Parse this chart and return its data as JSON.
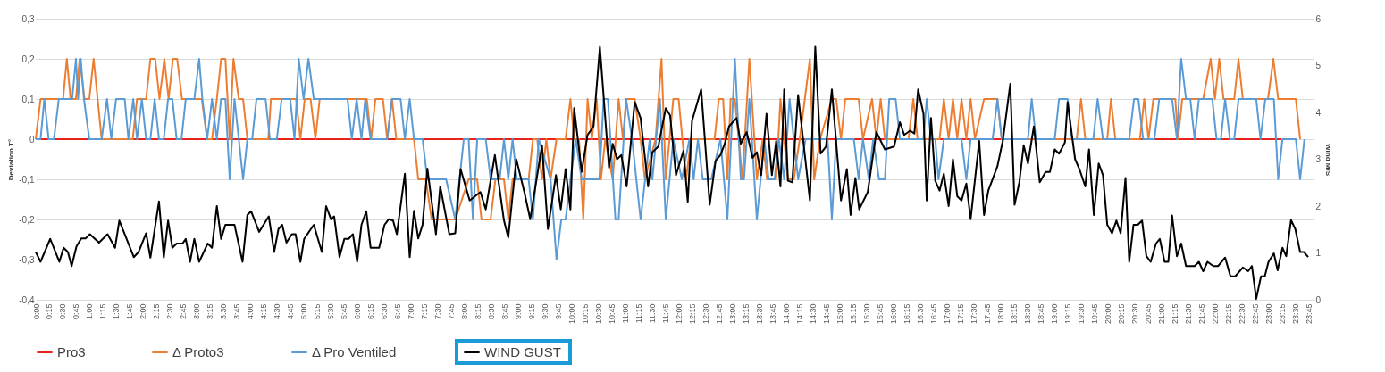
{
  "chart_data": {
    "type": "line",
    "ylabel": "Deviation T°",
    "y2label": "Wind M/S",
    "xlim": [
      0,
      23.85
    ],
    "xticks": [
      {
        "value": 0,
        "label": "0:00"
      },
      {
        "value": 0.25,
        "label": "0:15"
      },
      {
        "value": 0.5,
        "label": "0:30"
      },
      {
        "value": 0.75,
        "label": "0:45"
      },
      {
        "value": 1,
        "label": "1:00"
      },
      {
        "value": 1.25,
        "label": "1:15"
      },
      {
        "value": 1.5,
        "label": "1:30"
      },
      {
        "value": 1.75,
        "label": "1:45"
      },
      {
        "value": 2,
        "label": "2:00"
      },
      {
        "value": 2.25,
        "label": "2:15"
      },
      {
        "value": 2.5,
        "label": "2:30"
      },
      {
        "value": 2.75,
        "label": "2:45"
      },
      {
        "value": 3,
        "label": "3:00"
      },
      {
        "value": 3.25,
        "label": "3:15"
      },
      {
        "value": 3.5,
        "label": "3:30"
      },
      {
        "value": 3.75,
        "label": "3:45"
      },
      {
        "value": 4,
        "label": "4:00"
      },
      {
        "value": 4.25,
        "label": "4:15"
      },
      {
        "value": 4.5,
        "label": "4:30"
      },
      {
        "value": 4.75,
        "label": "4:45"
      },
      {
        "value": 5,
        "label": "5:00"
      },
      {
        "value": 5.25,
        "label": "5:15"
      },
      {
        "value": 5.5,
        "label": "5:30"
      },
      {
        "value": 5.75,
        "label": "5:45"
      },
      {
        "value": 6,
        "label": "6:00"
      },
      {
        "value": 6.25,
        "label": "6:15"
      },
      {
        "value": 6.5,
        "label": "6:30"
      },
      {
        "value": 6.75,
        "label": "6:45"
      },
      {
        "value": 7,
        "label": "7:00"
      },
      {
        "value": 7.25,
        "label": "7:15"
      },
      {
        "value": 7.5,
        "label": "7:30"
      },
      {
        "value": 7.75,
        "label": "7:45"
      },
      {
        "value": 8,
        "label": "8:00"
      },
      {
        "value": 8.25,
        "label": "8:15"
      },
      {
        "value": 8.5,
        "label": "8:30"
      },
      {
        "value": 8.75,
        "label": "8:45"
      },
      {
        "value": 9,
        "label": "9:00"
      },
      {
        "value": 9.25,
        "label": "9:15"
      },
      {
        "value": 9.5,
        "label": "9:30"
      },
      {
        "value": 9.75,
        "label": "9:45"
      },
      {
        "value": 10,
        "label": "10:00"
      },
      {
        "value": 10.25,
        "label": "10:15"
      },
      {
        "value": 10.5,
        "label": "10:30"
      },
      {
        "value": 10.75,
        "label": "10:45"
      },
      {
        "value": 11,
        "label": "11:00"
      },
      {
        "value": 11.25,
        "label": "11:15"
      },
      {
        "value": 11.5,
        "label": "11:30"
      },
      {
        "value": 11.75,
        "label": "11:45"
      },
      {
        "value": 12,
        "label": "12:00"
      },
      {
        "value": 12.25,
        "label": "12:15"
      },
      {
        "value": 12.5,
        "label": "12:30"
      },
      {
        "value": 12.75,
        "label": "12:45"
      },
      {
        "value": 13,
        "label": "13:00"
      },
      {
        "value": 13.25,
        "label": "13:15"
      },
      {
        "value": 13.5,
        "label": "13:30"
      },
      {
        "value": 13.75,
        "label": "13:45"
      },
      {
        "value": 14,
        "label": "14:00"
      },
      {
        "value": 14.25,
        "label": "14:15"
      },
      {
        "value": 14.5,
        "label": "14:30"
      },
      {
        "value": 14.75,
        "label": "14:45"
      },
      {
        "value": 15,
        "label": "15:00"
      },
      {
        "value": 15.25,
        "label": "15:15"
      },
      {
        "value": 15.5,
        "label": "15:30"
      },
      {
        "value": 15.75,
        "label": "15:45"
      },
      {
        "value": 16,
        "label": "16:00"
      },
      {
        "value": 16.25,
        "label": "16:15"
      },
      {
        "value": 16.5,
        "label": "16:30"
      },
      {
        "value": 16.75,
        "label": "16:45"
      },
      {
        "value": 17,
        "label": "17:00"
      },
      {
        "value": 17.25,
        "label": "17:15"
      },
      {
        "value": 17.5,
        "label": "17:30"
      },
      {
        "value": 17.75,
        "label": "17:45"
      },
      {
        "value": 18,
        "label": "18:00"
      },
      {
        "value": 18.25,
        "label": "18:15"
      },
      {
        "value": 18.5,
        "label": "18:30"
      },
      {
        "value": 18.75,
        "label": "18:45"
      },
      {
        "value": 19,
        "label": "19:00"
      },
      {
        "value": 19.25,
        "label": "19:15"
      },
      {
        "value": 19.5,
        "label": "19:30"
      },
      {
        "value": 19.75,
        "label": "19:45"
      },
      {
        "value": 20,
        "label": "20:00"
      },
      {
        "value": 20.25,
        "label": "20:15"
      },
      {
        "value": 20.5,
        "label": "20:30"
      },
      {
        "value": 20.75,
        "label": "20:45"
      },
      {
        "value": 21,
        "label": "21:00"
      },
      {
        "value": 21.25,
        "label": "21:15"
      },
      {
        "value": 21.5,
        "label": "21:30"
      },
      {
        "value": 21.75,
        "label": "21:45"
      },
      {
        "value": 22,
        "label": "22:00"
      },
      {
        "value": 22.25,
        "label": "22:15"
      },
      {
        "value": 22.5,
        "label": "22:30"
      },
      {
        "value": 22.75,
        "label": "22:45"
      },
      {
        "value": 23,
        "label": "23:00"
      },
      {
        "value": 23.25,
        "label": "23:15"
      },
      {
        "value": 23.5,
        "label": "23:30"
      },
      {
        "value": 23.75,
        "label": "23:45"
      }
    ],
    "ylim": [
      -0.4,
      0.3
    ],
    "yticks": [
      {
        "value": -0.4,
        "label": "-0,4"
      },
      {
        "value": -0.3,
        "label": "-0,3"
      },
      {
        "value": -0.2,
        "label": "-0,2"
      },
      {
        "value": -0.1,
        "label": "-0,1"
      },
      0,
      {
        "value": 0.1,
        "label": "0,1"
      },
      {
        "value": 0.2,
        "label": "0,2"
      },
      {
        "value": 0.3,
        "label": "0,3"
      }
    ],
    "y2lim": [
      0,
      6
    ],
    "y2ticks": [
      0,
      1,
      2,
      3,
      4,
      5,
      6
    ],
    "grid": "y",
    "legend": "bottom",
    "series": [
      {
        "name": "Pro3",
        "color": "#e8231c",
        "x": [
          0,
          23.25
        ],
        "values": [
          0,
          0
        ]
      },
      {
        "name": "Δ Proto3",
        "color": "#ed7d31",
        "x": [
          0,
          0.09,
          0.51,
          0.58,
          0.65,
          0.75,
          0.82,
          0.91,
          1.0,
          1.08,
          1.23,
          1.81,
          1.89,
          2.06,
          2.14,
          2.23,
          2.31,
          2.4,
          2.48,
          2.56,
          2.64,
          2.73,
          3.1,
          3.2,
          3.29,
          3.38,
          3.46,
          3.54,
          3.62,
          3.69,
          3.79,
          3.87,
          3.95,
          4.34,
          4.39,
          4.86,
          4.94,
          5.02,
          5.13,
          5.22,
          5.3,
          6.18,
          6.26,
          6.34,
          6.48,
          6.56,
          6.65,
          6.73,
          7.06,
          7.14,
          7.28,
          7.39,
          7.83,
          8.08,
          8.24,
          8.32,
          8.49,
          8.58,
          8.74,
          8.82,
          8.9,
          9.2,
          9.28,
          9.36,
          9.45,
          9.53,
          9.61,
          9.72,
          9.89,
          9.98,
          10.05,
          10.14,
          10.22,
          10.3,
          10.38,
          10.47,
          10.55,
          10.63,
          10.77,
          10.88,
          10.96,
          11.02,
          11.18,
          11.29,
          11.37,
          11.57,
          11.68,
          11.76,
          11.9,
          12.0,
          12.14,
          12.23,
          12.67,
          12.75,
          12.83,
          12.91,
          12.97,
          13.05,
          13.19,
          13.32,
          13.46,
          13.57,
          13.65,
          13.82,
          13.9,
          14.04,
          14.15,
          14.26,
          14.45,
          14.53,
          14.64,
          14.86,
          14.94,
          15.03,
          15.11,
          15.36,
          15.44,
          15.61,
          15.69,
          15.77,
          15.85,
          16.29,
          16.38,
          16.46,
          16.87,
          16.95,
          17.04,
          17.12,
          17.2,
          17.28,
          17.37,
          17.45,
          17.53,
          17.7,
          17.95,
          18.03,
          19.43,
          19.51,
          19.59,
          20.0,
          20.07,
          20.15,
          20.61,
          20.69,
          20.77,
          20.86,
          21.27,
          21.32,
          21.4,
          21.79,
          21.93,
          22.01,
          22.09,
          22.17,
          22.37,
          22.45,
          22.53,
          23.0,
          23.1,
          23.19,
          23.52,
          23.6
        ],
        "values": [
          0,
          0.1,
          0.1,
          0.2,
          0.1,
          0.1,
          0.2,
          0.1,
          0.1,
          0.2,
          0,
          0,
          0.1,
          0.1,
          0.2,
          0.2,
          0.1,
          0.2,
          0.1,
          0.2,
          0.2,
          0.1,
          0.1,
          0,
          0,
          0.1,
          0.2,
          0.2,
          0,
          0.2,
          0.1,
          0.1,
          0,
          0,
          0.1,
          0.1,
          0,
          0.1,
          0.1,
          0,
          0.1,
          0.1,
          0,
          0.1,
          0.1,
          0,
          0.1,
          0,
          0,
          -0.1,
          -0.1,
          -0.2,
          -0.2,
          -0.1,
          -0.1,
          -0.2,
          -0.2,
          -0.1,
          -0.1,
          -0.2,
          -0.1,
          -0.1,
          0,
          0,
          -0.1,
          0,
          -0.1,
          0,
          0,
          0.1,
          0,
          0,
          -0.2,
          0.1,
          0,
          0.1,
          -0.1,
          0,
          -0.1,
          0.1,
          0,
          0.1,
          0.1,
          0,
          -0.1,
          0,
          0.2,
          -0.1,
          0.1,
          0.1,
          -0.1,
          0,
          0,
          0.1,
          0.1,
          -0.1,
          0.1,
          0.1,
          -0.1,
          0.2,
          -0.1,
          0,
          -0.1,
          -0.1,
          0.1,
          -0.1,
          -0.1,
          0,
          0.2,
          -0.1,
          0,
          0.1,
          0.1,
          0,
          0.1,
          0.1,
          0,
          0.1,
          0,
          0.1,
          0,
          0,
          0.1,
          0,
          0,
          0.1,
          0,
          0.1,
          0,
          0.1,
          0,
          0.1,
          0,
          0.1,
          0.1,
          0,
          0,
          0.1,
          0,
          0,
          0.1,
          0,
          0,
          0.1,
          0,
          0.1,
          0.1,
          0,
          0.1,
          0.1,
          0.2,
          0.1,
          0.2,
          0.1,
          0.1,
          0.2,
          0.1,
          0.1,
          0.2,
          0.1,
          0.1,
          0
        ]
      },
      {
        "name": "Δ Pro Ventiled",
        "color": "#5b9bd5",
        "x": [
          0,
          0.09,
          0.16,
          0.24,
          0.34,
          0.43,
          0.68,
          0.75,
          0.79,
          0.84,
          0.9,
          1.0,
          1.23,
          1.33,
          1.41,
          1.5,
          1.66,
          1.73,
          1.82,
          1.89,
          1.98,
          2.06,
          2.14,
          2.22,
          2.3,
          2.39,
          2.47,
          2.55,
          2.63,
          2.72,
          2.8,
          2.96,
          3.05,
          3.11,
          3.2,
          3.29,
          3.38,
          3.46,
          3.54,
          3.62,
          3.71,
          3.79,
          3.87,
          3.95,
          4.04,
          4.12,
          4.29,
          4.37,
          4.5,
          4.59,
          4.75,
          4.83,
          4.91,
          5.0,
          5.09,
          5.19,
          5.82,
          5.9,
          5.99,
          6.08,
          6.15,
          6.25,
          6.56,
          6.65,
          6.81,
          6.89,
          6.98,
          7.06,
          7.22,
          7.31,
          7.66,
          7.83,
          7.99,
          8.08,
          8.16,
          8.24,
          8.4,
          8.49,
          8.66,
          8.74,
          8.82,
          8.9,
          8.98,
          9.2,
          9.28,
          9.39,
          9.61,
          9.72,
          9.81,
          9.89,
          9.98,
          10.08,
          10.19,
          10.52,
          10.6,
          10.68,
          10.82,
          10.88,
          11.02,
          11.13,
          11.29,
          11.46,
          11.51,
          11.65,
          11.76,
          11.9,
          12.06,
          12.2,
          12.28,
          12.36,
          12.45,
          12.61,
          12.78,
          12.91,
          13.05,
          13.16,
          13.22,
          13.32,
          13.46,
          13.6,
          13.68,
          13.79,
          13.87,
          13.97,
          14.07,
          14.23,
          14.37,
          14.78,
          14.86,
          14.94,
          15.27,
          15.36,
          15.44,
          15.55,
          15.63,
          15.74,
          15.85,
          15.93,
          16.05,
          16.13,
          16.57,
          16.63,
          16.71,
          16.79,
          16.85,
          16.95,
          17.28,
          17.37,
          17.45,
          17.86,
          17.95,
          18.03,
          18.52,
          18.59,
          18.67,
          19.02,
          19.1,
          19.26,
          19.34,
          19.74,
          19.82,
          19.92,
          20.41,
          20.5,
          20.58,
          20.67,
          20.88,
          20.97,
          21.21,
          21.3,
          21.38,
          21.47,
          21.55,
          21.63,
          21.71,
          21.96,
          22.04,
          22.12,
          22.2,
          22.29,
          22.37,
          22.45,
          22.78,
          22.86,
          22.95,
          23.11,
          23.19,
          23.27,
          23.52,
          23.6,
          23.68
        ],
        "values": [
          0,
          0,
          0.1,
          0,
          0,
          0.1,
          0.1,
          0.2,
          0.1,
          0.2,
          0.1,
          0,
          0,
          0.1,
          0,
          0.1,
          0.1,
          0,
          0.1,
          0,
          0.1,
          0,
          0,
          0.1,
          0,
          0,
          0.1,
          0.1,
          0,
          0,
          0.1,
          0.1,
          0.2,
          0.1,
          0,
          0.1,
          0,
          0.1,
          0.1,
          -0.1,
          0.1,
          0,
          -0.1,
          0,
          0,
          0.1,
          0.1,
          0,
          0,
          0.1,
          0.1,
          0,
          0.2,
          0.1,
          0.2,
          0.1,
          0.1,
          0,
          0.1,
          0,
          0.1,
          0,
          0,
          0.1,
          0.1,
          0,
          0.1,
          0,
          0,
          -0.1,
          -0.1,
          -0.2,
          0,
          0,
          -0.2,
          0,
          0,
          -0.1,
          -0.1,
          0,
          -0.1,
          0,
          -0.1,
          -0.1,
          -0.2,
          0,
          -0.1,
          -0.3,
          -0.2,
          -0.2,
          -0.1,
          0,
          -0.1,
          -0.1,
          0.1,
          0.1,
          -0.2,
          -0.2,
          0.1,
          0,
          -0.2,
          0,
          -0.1,
          0.1,
          -0.2,
          0,
          -0.1,
          0,
          -0.1,
          0,
          -0.1,
          -0.1,
          0,
          -0.2,
          0.2,
          -0.1,
          -0.1,
          0.1,
          -0.2,
          0,
          -0.1,
          -0.1,
          0,
          -0.1,
          0.1,
          -0.1,
          0,
          0,
          -0.2,
          0,
          0,
          -0.1,
          0,
          -0.1,
          0,
          -0.1,
          -0.1,
          0.1,
          0.1,
          0,
          0,
          0.1,
          0,
          0,
          -0.1,
          0,
          0,
          -0.1,
          0,
          0,
          0.1,
          0,
          0,
          0.1,
          0,
          0,
          0.1,
          0.1,
          0,
          0,
          0.1,
          0,
          0,
          0.1,
          0.1,
          0,
          0,
          0.1,
          0.1,
          0,
          0.2,
          0.1,
          0.1,
          0,
          0.1,
          0.1,
          0,
          0,
          0.1,
          0,
          0,
          0.1,
          0.1,
          0,
          0.1,
          0.1,
          -0.1,
          0,
          0,
          -0.1,
          0
        ]
      },
      {
        "name": "WIND GUST",
        "color": "#000000",
        "axis": "y2",
        "x": [
          0,
          0.09,
          0.27,
          0.44,
          0.52,
          0.6,
          0.67,
          0.76,
          0.85,
          0.93,
          1.01,
          1.18,
          1.34,
          1.48,
          1.56,
          1.83,
          1.92,
          2.06,
          2.14,
          2.3,
          2.39,
          2.47,
          2.55,
          2.63,
          2.74,
          2.8,
          2.88,
          2.96,
          3.05,
          3.21,
          3.29,
          3.38,
          3.46,
          3.54,
          3.71,
          3.86,
          3.95,
          4.02,
          4.17,
          4.35,
          4.45,
          4.53,
          4.6,
          4.68,
          4.78,
          4.85,
          4.94,
          5.01,
          5.19,
          5.34,
          5.42,
          5.51,
          5.57,
          5.67,
          5.76,
          5.84,
          5.92,
          6.0,
          6.08,
          6.17,
          6.25,
          6.41,
          6.51,
          6.59,
          6.67,
          6.74,
          6.89,
          6.98,
          7.06,
          7.14,
          7.22,
          7.31,
          7.47,
          7.55,
          7.72,
          7.83,
          7.93,
          8.1,
          8.3,
          8.4,
          8.57,
          8.74,
          8.82,
          8.97,
          9.12,
          9.23,
          9.45,
          9.56,
          9.71,
          9.8,
          9.89,
          9.98,
          10.05,
          10.19,
          10.3,
          10.41,
          10.53,
          10.7,
          10.77,
          10.85,
          10.93,
          11.03,
          11.18,
          11.29,
          11.43,
          11.51,
          11.62,
          11.76,
          11.84,
          11.95,
          12.09,
          12.17,
          12.25,
          12.42,
          12.58,
          12.69,
          12.78,
          12.86,
          12.94,
          13.08,
          13.16,
          13.27,
          13.38,
          13.46,
          13.54,
          13.64,
          13.74,
          13.82,
          13.9,
          13.97,
          14.04,
          14.12,
          14.23,
          14.45,
          14.55,
          14.65,
          14.75,
          14.86,
          15.03,
          15.14,
          15.21,
          15.3,
          15.37,
          15.53,
          15.69,
          15.85,
          16.02,
          16.13,
          16.21,
          16.32,
          16.4,
          16.47,
          16.57,
          16.63,
          16.71,
          16.79,
          16.87,
          16.95,
          17.04,
          17.12,
          17.2,
          17.28,
          17.37,
          17.45,
          17.61,
          17.7,
          17.78,
          17.95,
          18.05,
          18.19,
          18.27,
          18.36,
          18.44,
          18.52,
          18.63,
          18.74,
          18.85,
          18.93,
          19.02,
          19.1,
          19.21,
          19.26,
          19.4,
          19.48,
          19.59,
          19.66,
          19.75,
          19.84,
          19.92,
          20.0,
          20.09,
          20.17,
          20.25,
          20.34,
          20.41,
          20.49,
          20.57,
          20.65,
          20.73,
          20.81,
          20.91,
          20.98,
          21.07,
          21.14,
          21.21,
          21.3,
          21.38,
          21.47,
          21.63,
          21.71,
          21.79,
          21.87,
          21.98,
          22.07,
          22.2,
          22.3,
          22.39,
          22.53,
          22.63,
          22.7,
          22.78,
          22.87,
          22.94,
          23.01,
          23.11,
          23.18,
          23.27,
          23.34,
          23.43,
          23.51,
          23.6,
          23.67,
          23.75
        ],
        "values": [
          1.02,
          0.81,
          1.3,
          0.81,
          1.11,
          1.02,
          0.72,
          1.14,
          1.31,
          1.31,
          1.4,
          1.22,
          1.4,
          1.11,
          1.69,
          0.91,
          1.02,
          1.42,
          0.9,
          2.1,
          0.9,
          1.69,
          1.11,
          1.2,
          1.2,
          1.3,
          0.81,
          1.3,
          0.81,
          1.2,
          1.11,
          2.0,
          1.3,
          1.6,
          1.6,
          0.81,
          1.81,
          1.89,
          1.45,
          1.78,
          1.02,
          1.51,
          1.6,
          1.22,
          1.4,
          1.4,
          0.81,
          1.3,
          1.6,
          1.02,
          2.0,
          1.72,
          1.78,
          0.91,
          1.3,
          1.3,
          1.4,
          0.81,
          1.6,
          1.89,
          1.11,
          1.11,
          1.6,
          1.72,
          1.69,
          1.4,
          2.69,
          0.91,
          1.9,
          1.31,
          1.6,
          2.8,
          1.4,
          2.42,
          1.4,
          1.42,
          2.79,
          2.12,
          2.3,
          1.93,
          3.09,
          1.69,
          1.33,
          3.0,
          2.3,
          1.72,
          3.3,
          1.51,
          2.66,
          1.93,
          2.79,
          1.93,
          4.09,
          2.73,
          3.52,
          3.7,
          5.4,
          2.82,
          3.33,
          3.0,
          3.09,
          2.42,
          4.22,
          3.88,
          2.42,
          3.15,
          3.27,
          4.09,
          3.94,
          2.66,
          3.18,
          2.09,
          3.82,
          4.49,
          2.03,
          2.97,
          3.09,
          3.33,
          3.7,
          3.88,
          3.33,
          3.58,
          3.03,
          3.15,
          2.66,
          3.97,
          2.66,
          3.39,
          2.42,
          4.49,
          2.54,
          2.51,
          4.37,
          2.12,
          5.4,
          3.12,
          3.27,
          4.49,
          2.12,
          2.79,
          1.81,
          2.6,
          1.93,
          2.3,
          3.58,
          3.21,
          3.27,
          3.79,
          3.52,
          3.61,
          3.55,
          4.49,
          3.97,
          2.12,
          3.88,
          2.54,
          2.33,
          2.69,
          2.0,
          3.0,
          2.21,
          2.12,
          2.48,
          1.72,
          3.39,
          1.81,
          2.33,
          2.85,
          3.39,
          4.61,
          2.03,
          2.51,
          3.3,
          2.91,
          3.7,
          2.51,
          2.73,
          2.73,
          3.21,
          3.12,
          3.36,
          4.22,
          3.0,
          2.79,
          2.42,
          3.21,
          1.81,
          2.91,
          2.66,
          1.6,
          1.42,
          1.69,
          1.42,
          2.6,
          0.81,
          1.6,
          1.6,
          1.69,
          0.93,
          0.81,
          1.2,
          1.3,
          0.81,
          0.81,
          1.8,
          0.93,
          1.2,
          0.72,
          0.72,
          0.81,
          0.61,
          0.81,
          0.72,
          0.72,
          0.9,
          0.5,
          0.5,
          0.69,
          0.61,
          0.72,
          0.02,
          0.5,
          0.5,
          0.81,
          0.99,
          0.63,
          1.11,
          0.93,
          1.7,
          1.51,
          1.02,
          1.02,
          0.91
        ]
      }
    ]
  }
}
